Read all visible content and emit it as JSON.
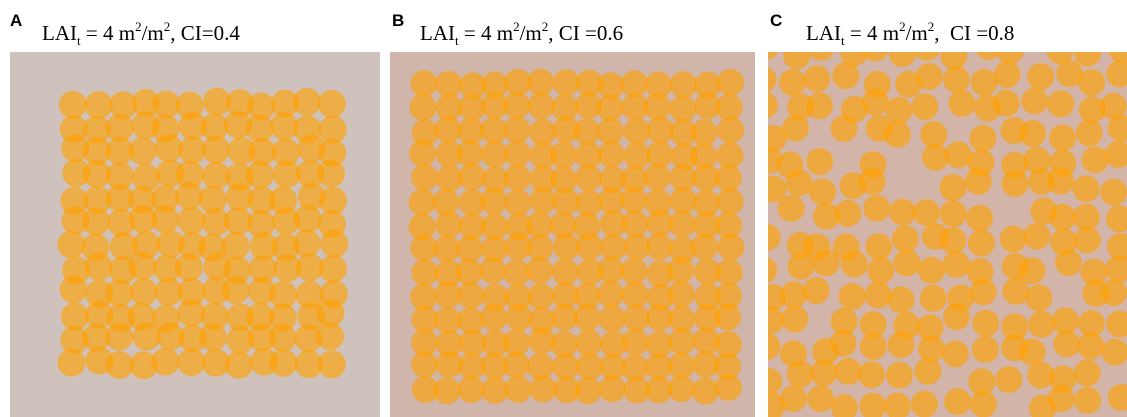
{
  "panels": [
    {
      "letter": "A",
      "title": {
        "base": "LAI",
        "sub": "t",
        "mid": " = 4 m",
        "sup1": "2",
        "unit": "/m",
        "sup2": "2",
        "tail": ", CI=0.4"
      }
    },
    {
      "letter": "B",
      "title": {
        "base": "LAI",
        "sub": "t",
        "mid": " = 4 m",
        "sup1": "2",
        "unit": "/m",
        "sup2": "2",
        "tail": ", CI =0.6"
      }
    },
    {
      "letter": "C",
      "title": {
        "base": "LAI",
        "sub": "t",
        "mid": " = 4 m",
        "sup1": "2",
        "unit": "/m",
        "sup2": "2",
        "tail": ",  CI =0.8"
      }
    }
  ]
}
